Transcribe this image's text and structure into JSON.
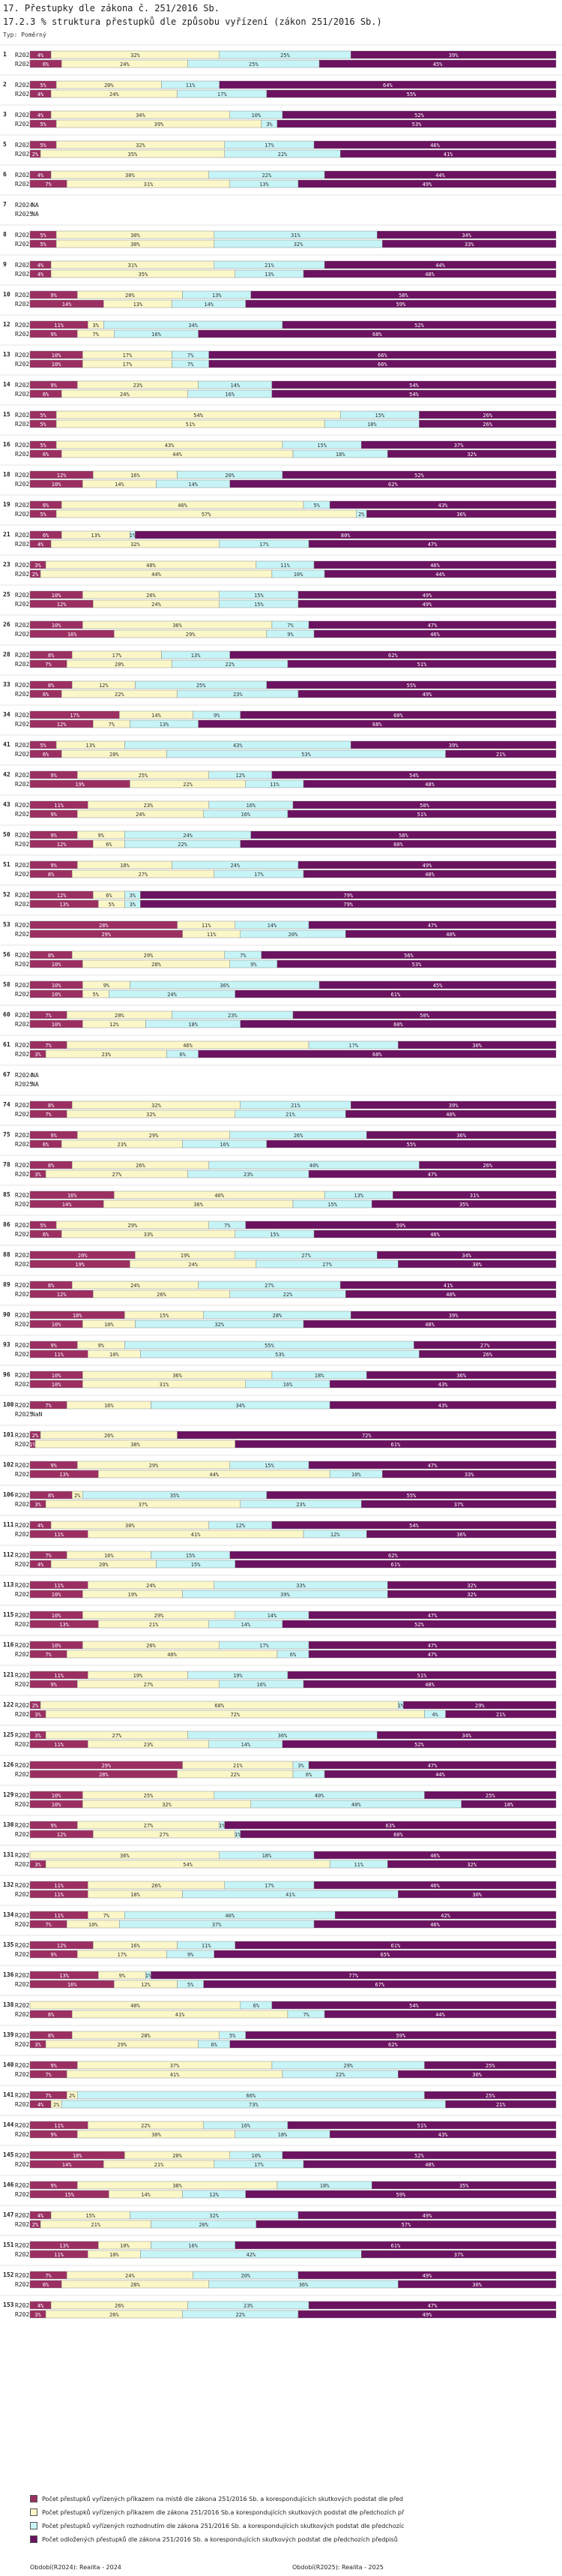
{
  "header": {
    "title": "17. Přestupky dle zákona č. 251/2016 Sb.",
    "subtitle": "17.2.3 % struktura přestupků dle způsobu vyřízení (zákon 251/2016 Sb.)",
    "typ": "Typ: Poměrný"
  },
  "colors": [
    "#9b2f62",
    "#fbf7c8",
    "#c7f4f6",
    "#6b1260"
  ],
  "chart_data": {
    "type": "bar",
    "stacked": true,
    "orientation": "horizontal",
    "unit": "%",
    "xlim": [
      0,
      100
    ],
    "series_names": [
      "Počet přestupků vyřízených příkazem na místě dle zákona 251/2016 Sb. a korespondujících skutkových podstat dle předchozích předpisů",
      "Počet přestupků vyřízených příkazem dle zákona 251/2016 Sb.a korespondujících skutkových podstat dle předchozích předpisů",
      "Počet přestupků vyřízených rozhodnutím dle zákona 251/2016 Sb. a korespondujících skutkových podstat dle předchozích předpisů",
      "Počet odložených přestupků dle zákona 251/2016 Sb. a korespondujících skutkových podstat dle předchozích předpisů"
    ],
    "series_labels": [
      "R2024",
      "R2025"
    ],
    "groups": [
      {
        "id": "1",
        "rows": [
          [
            4,
            32,
            25,
            39
          ],
          [
            6,
            24,
            25,
            45
          ]
        ]
      },
      {
        "id": "2",
        "rows": [
          [
            5,
            20,
            11,
            64
          ],
          [
            4,
            24,
            17,
            55
          ]
        ]
      },
      {
        "id": "3",
        "rows": [
          [
            4,
            34,
            10,
            52
          ],
          [
            5,
            39,
            3,
            53
          ]
        ]
      },
      {
        "id": "5",
        "rows": [
          [
            5,
            32,
            17,
            46
          ],
          [
            2,
            35,
            22,
            41
          ]
        ]
      },
      {
        "id": "6",
        "rows": [
          [
            4,
            30,
            22,
            44
          ],
          [
            7,
            31,
            13,
            49
          ]
        ]
      },
      {
        "id": "7",
        "na": true,
        "rows": [
          null,
          null
        ]
      },
      {
        "id": "8",
        "rows": [
          [
            5,
            30,
            31,
            34
          ],
          [
            5,
            30,
            32,
            33
          ]
        ]
      },
      {
        "id": "9",
        "rows": [
          [
            4,
            31,
            21,
            44
          ],
          [
            4,
            35,
            13,
            48
          ]
        ]
      },
      {
        "id": "10",
        "rows": [
          [
            9,
            20,
            13,
            58
          ],
          [
            14,
            13,
            14,
            59
          ]
        ]
      },
      {
        "id": "12",
        "rows": [
          [
            11,
            3,
            34,
            52
          ],
          [
            9,
            7,
            16,
            68
          ]
        ]
      },
      {
        "id": "13",
        "rows": [
          [
            10,
            17,
            7,
            66
          ],
          [
            10,
            17,
            7,
            66
          ]
        ]
      },
      {
        "id": "14",
        "rows": [
          [
            9,
            23,
            14,
            54
          ],
          [
            6,
            24,
            16,
            54
          ]
        ]
      },
      {
        "id": "15",
        "rows": [
          [
            5,
            54,
            15,
            26
          ],
          [
            5,
            51,
            18,
            26
          ]
        ]
      },
      {
        "id": "16",
        "rows": [
          [
            5,
            43,
            15,
            37
          ],
          [
            6,
            44,
            18,
            32
          ]
        ]
      },
      {
        "id": "18",
        "rows": [
          [
            12,
            16,
            20,
            52
          ],
          [
            10,
            14,
            14,
            62
          ]
        ]
      },
      {
        "id": "19",
        "rows": [
          [
            6,
            46,
            5,
            43
          ],
          [
            5,
            57,
            2,
            36
          ]
        ]
      },
      {
        "id": "21",
        "rows": [
          [
            6,
            13,
            1,
            80
          ],
          [
            4,
            32,
            17,
            47
          ]
        ]
      },
      {
        "id": "23",
        "rows": [
          [
            3,
            40,
            11,
            46
          ],
          [
            2,
            44,
            10,
            44
          ]
        ]
      },
      {
        "id": "25",
        "rows": [
          [
            10,
            26,
            15,
            49
          ],
          [
            12,
            24,
            15,
            49
          ]
        ]
      },
      {
        "id": "26",
        "rows": [
          [
            10,
            36,
            7,
            47
          ],
          [
            16,
            29,
            9,
            46
          ]
        ]
      },
      {
        "id": "28",
        "rows": [
          [
            8,
            17,
            13,
            62
          ],
          [
            7,
            20,
            22,
            51
          ]
        ]
      },
      {
        "id": "33",
        "rows": [
          [
            8,
            12,
            25,
            55
          ],
          [
            6,
            22,
            23,
            49
          ]
        ]
      },
      {
        "id": "34",
        "rows": [
          [
            17,
            14,
            9,
            60
          ],
          [
            12,
            7,
            13,
            68
          ]
        ]
      },
      {
        "id": "41",
        "rows": [
          [
            5,
            13,
            43,
            39
          ],
          [
            6,
            20,
            53,
            21
          ]
        ]
      },
      {
        "id": "42",
        "rows": [
          [
            9,
            25,
            12,
            54
          ],
          [
            19,
            22,
            11,
            48
          ]
        ]
      },
      {
        "id": "43",
        "rows": [
          [
            11,
            23,
            16,
            50
          ],
          [
            9,
            24,
            16,
            51
          ]
        ]
      },
      {
        "id": "50",
        "rows": [
          [
            9,
            9,
            24,
            58
          ],
          [
            12,
            6,
            22,
            60
          ]
        ]
      },
      {
        "id": "51",
        "rows": [
          [
            9,
            18,
            24,
            49
          ],
          [
            8,
            27,
            17,
            48
          ]
        ]
      },
      {
        "id": "52",
        "rows": [
          [
            12,
            6,
            3,
            79
          ],
          [
            13,
            5,
            3,
            79
          ]
        ]
      },
      {
        "id": "53",
        "rows": [
          [
            28,
            11,
            14,
            47
          ],
          [
            29,
            11,
            20,
            40
          ]
        ]
      },
      {
        "id": "56",
        "rows": [
          [
            8,
            29,
            7,
            56
          ],
          [
            10,
            28,
            9,
            53
          ]
        ]
      },
      {
        "id": "58",
        "rows": [
          [
            10,
            9,
            36,
            45
          ],
          [
            10,
            5,
            24,
            61
          ]
        ]
      },
      {
        "id": "60",
        "rows": [
          [
            7,
            20,
            23,
            50
          ],
          [
            10,
            12,
            18,
            60
          ]
        ]
      },
      {
        "id": "61",
        "rows": [
          [
            7,
            46,
            17,
            30
          ],
          [
            3,
            23,
            6,
            68
          ]
        ]
      },
      {
        "id": "67",
        "na": true,
        "rows": [
          null,
          null
        ]
      },
      {
        "id": "74",
        "rows": [
          [
            8,
            32,
            21,
            39
          ],
          [
            7,
            32,
            21,
            40
          ]
        ]
      },
      {
        "id": "75",
        "rows": [
          [
            9,
            29,
            26,
            36
          ],
          [
            6,
            23,
            16,
            55
          ]
        ]
      },
      {
        "id": "78",
        "rows": [
          [
            8,
            26,
            40,
            26
          ],
          [
            3,
            27,
            23,
            47
          ]
        ]
      },
      {
        "id": "85",
        "rows": [
          [
            16,
            40,
            13,
            31
          ],
          [
            14,
            36,
            15,
            35
          ]
        ]
      },
      {
        "id": "86",
        "rows": [
          [
            5,
            29,
            7,
            59
          ],
          [
            6,
            33,
            15,
            46
          ]
        ]
      },
      {
        "id": "88",
        "rows": [
          [
            20,
            19,
            27,
            34
          ],
          [
            19,
            24,
            27,
            30
          ]
        ]
      },
      {
        "id": "89",
        "rows": [
          [
            8,
            24,
            27,
            41
          ],
          [
            12,
            26,
            22,
            40
          ]
        ]
      },
      {
        "id": "90",
        "rows": [
          [
            18,
            15,
            28,
            39
          ],
          [
            10,
            10,
            32,
            48
          ]
        ]
      },
      {
        "id": "93",
        "rows": [
          [
            9,
            9,
            55,
            27
          ],
          [
            11,
            10,
            53,
            26
          ]
        ]
      },
      {
        "id": "96",
        "rows": [
          [
            10,
            36,
            18,
            36
          ],
          [
            10,
            31,
            16,
            43
          ]
        ]
      },
      {
        "id": "100",
        "rows": [
          [
            7,
            16,
            34,
            43
          ],
          "nan"
        ]
      },
      {
        "id": "101",
        "rows": [
          [
            2,
            26,
            0,
            72
          ],
          [
            1,
            38,
            0,
            61
          ]
        ]
      },
      {
        "id": "102",
        "rows": [
          [
            9,
            29,
            15,
            47
          ],
          [
            13,
            44,
            10,
            33
          ]
        ]
      },
      {
        "id": "106",
        "rows": [
          [
            8,
            2,
            35,
            55
          ],
          [
            3,
            37,
            23,
            37
          ]
        ]
      },
      {
        "id": "111",
        "rows": [
          [
            4,
            30,
            12,
            54
          ],
          [
            11,
            41,
            12,
            36
          ]
        ]
      },
      {
        "id": "112",
        "rows": [
          [
            7,
            16,
            15,
            62
          ],
          [
            4,
            20,
            15,
            61
          ]
        ]
      },
      {
        "id": "113",
        "rows": [
          [
            11,
            24,
            33,
            32
          ],
          [
            10,
            19,
            39,
            32
          ]
        ]
      },
      {
        "id": "115",
        "rows": [
          [
            10,
            29,
            14,
            47
          ],
          [
            13,
            21,
            14,
            52
          ]
        ]
      },
      {
        "id": "116",
        "rows": [
          [
            10,
            26,
            17,
            47
          ],
          [
            7,
            40,
            6,
            47
          ]
        ]
      },
      {
        "id": "121",
        "rows": [
          [
            11,
            19,
            19,
            51
          ],
          [
            9,
            27,
            16,
            48
          ]
        ]
      },
      {
        "id": "122",
        "rows": [
          [
            2,
            68,
            1,
            29
          ],
          [
            3,
            72,
            4,
            21
          ]
        ]
      },
      {
        "id": "125",
        "rows": [
          [
            3,
            27,
            36,
            34
          ],
          [
            11,
            23,
            14,
            52
          ]
        ]
      },
      {
        "id": "126",
        "rows": [
          [
            29,
            21,
            3,
            47
          ],
          [
            28,
            22,
            6,
            44
          ]
        ]
      },
      {
        "id": "129",
        "rows": [
          [
            10,
            25,
            40,
            25
          ],
          [
            10,
            32,
            40,
            18
          ]
        ]
      },
      {
        "id": "130",
        "rows": [
          [
            9,
            27,
            1,
            63
          ],
          [
            12,
            27,
            1,
            60
          ]
        ]
      },
      {
        "id": "131",
        "rows": [
          [
            0,
            36,
            18,
            46
          ],
          [
            3,
            54,
            11,
            32
          ]
        ]
      },
      {
        "id": "132",
        "rows": [
          [
            11,
            26,
            17,
            46
          ],
          [
            11,
            18,
            41,
            30
          ]
        ]
      },
      {
        "id": "134",
        "rows": [
          [
            11,
            7,
            40,
            42
          ],
          [
            7,
            10,
            37,
            46
          ]
        ]
      },
      {
        "id": "135",
        "rows": [
          [
            12,
            16,
            11,
            61
          ],
          [
            9,
            17,
            9,
            65
          ]
        ]
      },
      {
        "id": "136",
        "rows": [
          [
            13,
            9,
            1,
            77
          ],
          [
            16,
            12,
            5,
            67
          ]
        ]
      },
      {
        "id": "138",
        "rows": [
          [
            0,
            40,
            6,
            54
          ],
          [
            8,
            41,
            7,
            44
          ]
        ]
      },
      {
        "id": "139",
        "rows": [
          [
            8,
            28,
            5,
            59
          ],
          [
            3,
            29,
            6,
            62
          ]
        ]
      },
      {
        "id": "140",
        "rows": [
          [
            9,
            37,
            29,
            25
          ],
          [
            7,
            41,
            22,
            30
          ]
        ]
      },
      {
        "id": "141",
        "rows": [
          [
            7,
            2,
            66,
            25
          ],
          [
            4,
            2,
            73,
            21
          ]
        ]
      },
      {
        "id": "144",
        "rows": [
          [
            11,
            22,
            16,
            51
          ],
          [
            9,
            30,
            18,
            43
          ]
        ]
      },
      {
        "id": "145",
        "rows": [
          [
            18,
            20,
            10,
            52
          ],
          [
            14,
            21,
            17,
            48
          ]
        ]
      },
      {
        "id": "146",
        "rows": [
          [
            9,
            38,
            18,
            35
          ],
          [
            15,
            14,
            12,
            59
          ]
        ]
      },
      {
        "id": "147",
        "rows": [
          [
            4,
            15,
            32,
            49
          ],
          [
            2,
            21,
            20,
            57
          ]
        ]
      },
      {
        "id": "151",
        "rows": [
          [
            13,
            10,
            16,
            61
          ],
          [
            11,
            10,
            42,
            37
          ]
        ]
      },
      {
        "id": "152",
        "rows": [
          [
            7,
            24,
            20,
            49
          ],
          [
            6,
            28,
            36,
            30
          ]
        ]
      },
      {
        "id": "153",
        "rows": [
          [
            4,
            26,
            23,
            47
          ],
          [
            3,
            26,
            22,
            49
          ]
        ]
      }
    ]
  },
  "legend": {
    "items": [
      "Počet přestupků vyřízených příkazem na místě dle zákona 251/2016 Sb. a korespondujících skutkových podstat dle před",
      "Počet přestupků vyřízených příkazem dle zákona 251/2016 Sb.a korespondujících skutkových podstat dle předchozích př",
      "Počet přestupků vyřízených rozhodnutím dle zákona 251/2016 Sb. a korespondujících skutkových podstat dle předchozíc",
      "Počet odložených přestupků dle zákona 251/2016 Sb. a korespondujících skutkových podstat dle předchozích předpisů"
    ]
  },
  "footer": {
    "left": "Období(R2024): Realita - 2024",
    "right": "Období(R2025): Realita - 2025"
  }
}
